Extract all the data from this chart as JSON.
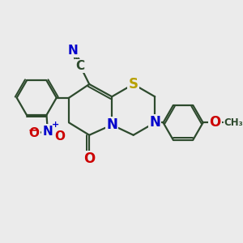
{
  "bg_color": "#ebebeb",
  "bond_color": "#2d4a2d",
  "atom_colors": {
    "S": "#b8a000",
    "N": "#0000cc",
    "O": "#cc0000",
    "C": "#2d4a2d"
  },
  "figsize": [
    3.0,
    3.0
  ],
  "dpi": 100,
  "xlim": [
    0,
    10
  ],
  "ylim": [
    0,
    10
  ]
}
